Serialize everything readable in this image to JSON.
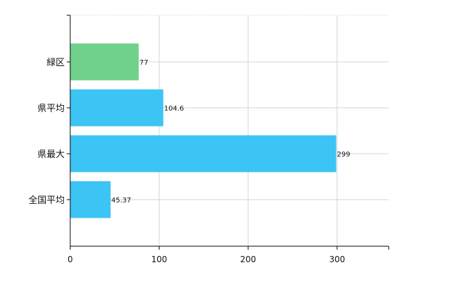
{
  "chart_data": {
    "type": "bar",
    "orientation": "horizontal",
    "title": "",
    "xlabel": "",
    "ylabel": "",
    "categories": [
      "緑区",
      "県平均",
      "県最大",
      "全国平均"
    ],
    "values": [
      77,
      104.6,
      299,
      45.37
    ],
    "value_labels": [
      "77",
      "104.6",
      "299",
      "45.37"
    ],
    "bar_colors": [
      "#6fd18b",
      "#3cc4f4",
      "#3cc4f4",
      "#3cc4f4"
    ],
    "xlim": [
      0,
      358
    ],
    "xticks": [
      0,
      100,
      200,
      300
    ],
    "xtick_labels": [
      "0",
      "100",
      "200",
      "300"
    ],
    "grid": true,
    "legend": "none"
  }
}
